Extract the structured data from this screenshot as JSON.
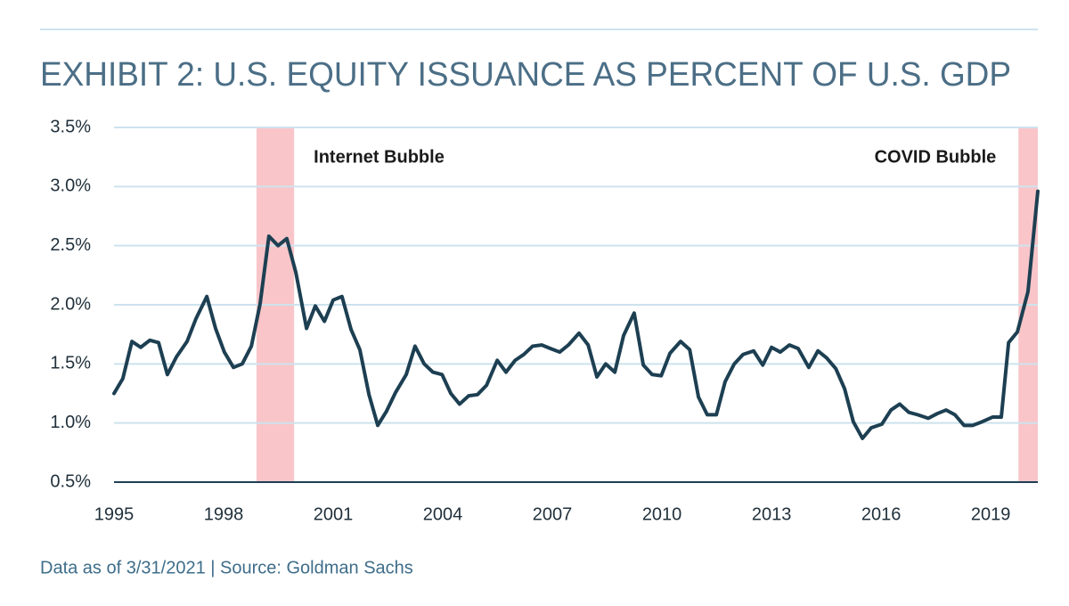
{
  "chart_data": {
    "type": "line",
    "title": "EXHIBIT 2: U.S. EQUITY ISSUANCE AS PERCENT OF U.S. GDP",
    "footnote": "Data as of 3/31/2021 | Source: Goldman Sachs",
    "x": [
      1995,
      1995.24,
      1995.49,
      1995.73,
      1995.98,
      1996.22,
      1996.46,
      1996.71,
      1997.0,
      1997.24,
      1997.54,
      1997.78,
      1998.02,
      1998.27,
      1998.51,
      1998.76,
      1999.0,
      1999.24,
      1999.49,
      1999.73,
      1999.98,
      2000.27,
      2000.51,
      2000.76,
      2001.0,
      2001.24,
      2001.49,
      2001.73,
      2001.98,
      2002.22,
      2002.46,
      2002.71,
      2003.0,
      2003.24,
      2003.49,
      2003.73,
      2003.98,
      2004.22,
      2004.46,
      2004.71,
      2004.95,
      2005.2,
      2005.49,
      2005.73,
      2005.98,
      2006.22,
      2006.46,
      2006.71,
      2006.95,
      2007.2,
      2007.44,
      2007.73,
      2007.98,
      2008.22,
      2008.46,
      2008.71,
      2008.95,
      2009.24,
      2009.49,
      2009.73,
      2009.98,
      2010.22,
      2010.51,
      2010.76,
      2011.0,
      2011.24,
      2011.49,
      2011.73,
      2011.98,
      2012.22,
      2012.51,
      2012.76,
      2013.0,
      2013.24,
      2013.49,
      2013.73,
      2014.02,
      2014.27,
      2014.51,
      2014.76,
      2015.0,
      2015.24,
      2015.49,
      2015.73,
      2016.02,
      2016.27,
      2016.51,
      2016.76,
      2017.0,
      2017.29,
      2017.54,
      2017.78,
      2018.02,
      2018.27,
      2018.51,
      2018.76,
      2019.05,
      2019.29,
      2019.49,
      2019.73,
      2020.02,
      2020.29
    ],
    "series": [
      {
        "name": "U.S. equity issuance as percent of U.S. GDP",
        "color": "#1d3f52",
        "values": [
          1.25,
          1.375,
          1.69,
          1.64,
          1.7,
          1.68,
          1.41,
          1.56,
          1.69,
          1.88,
          2.07,
          1.8,
          1.6,
          1.47,
          1.5,
          1.65,
          2.01,
          2.58,
          2.5,
          2.56,
          2.27,
          1.8,
          1.99,
          1.86,
          2.04,
          2.07,
          1.79,
          1.62,
          1.24,
          0.98,
          1.1,
          1.26,
          1.41,
          1.65,
          1.5,
          1.43,
          1.41,
          1.25,
          1.16,
          1.23,
          1.24,
          1.32,
          1.53,
          1.43,
          1.53,
          1.58,
          1.65,
          1.66,
          1.63,
          1.6,
          1.66,
          1.76,
          1.66,
          1.39,
          1.5,
          1.43,
          1.74,
          1.93,
          1.49,
          1.41,
          1.4,
          1.59,
          1.69,
          1.62,
          1.22,
          1.07,
          1.07,
          1.35,
          1.5,
          1.58,
          1.61,
          1.49,
          1.64,
          1.6,
          1.66,
          1.63,
          1.47,
          1.61,
          1.55,
          1.46,
          1.29,
          1.01,
          0.87,
          0.96,
          0.99,
          1.11,
          1.16,
          1.09,
          1.07,
          1.04,
          1.08,
          1.11,
          1.07,
          0.98,
          0.98,
          1.01,
          1.05,
          1.05,
          1.68,
          1.77,
          2.11,
          2.96
        ]
      }
    ],
    "xlim": [
      1995,
      2020.29
    ],
    "xticks": [
      1995,
      1998,
      2001,
      2004,
      2007,
      2010,
      2013,
      2016,
      2019
    ],
    "ylim": [
      0.5,
      3.5
    ],
    "yticks": [
      {
        "value": 0.5,
        "label": "0.5%"
      },
      {
        "value": 1.0,
        "label": "1.0%"
      },
      {
        "value": 1.5,
        "label": "1.5%"
      },
      {
        "value": 2.0,
        "label": "2.0%"
      },
      {
        "value": 2.5,
        "label": "2.5%"
      },
      {
        "value": 3.0,
        "label": "3.0%"
      },
      {
        "value": 3.5,
        "label": "3.5%"
      }
    ],
    "grid": true,
    "shaded_regions": [
      {
        "label": "Internet Bubble",
        "x": [
          1998.9,
          1999.93
        ],
        "color": "#f9c5c9"
      },
      {
        "label": "COVID Bubble",
        "x": [
          2019.76,
          2020.29
        ],
        "color": "#f9c5c9"
      }
    ]
  }
}
